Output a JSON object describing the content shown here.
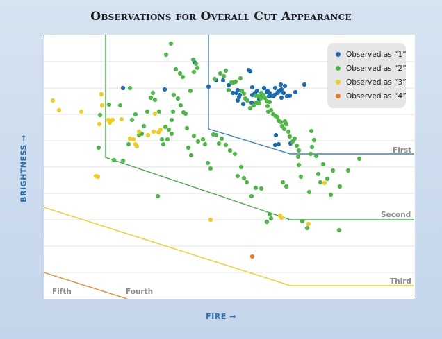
{
  "chart_data": {
    "type": "scatter",
    "title": "Observations for Overall Cut Appearance",
    "xlabel": "FIRE →",
    "ylabel": "BRIGHTNESS →",
    "xlim": [
      0,
      533
    ],
    "ylim": [
      0,
      381
    ],
    "grid": "horizontal",
    "legend_position": "top-right",
    "series": [
      {
        "name": "Observed as “1”",
        "color": "#1b6bb3",
        "points": [
          [
            114,
            304
          ],
          [
            174,
            302
          ],
          [
            217,
            341
          ],
          [
            237,
            306
          ],
          [
            248,
            315
          ],
          [
            258,
            315
          ],
          [
            266,
            308
          ],
          [
            272,
            297
          ],
          [
            277,
            297
          ],
          [
            279,
            301
          ],
          [
            279,
            286
          ],
          [
            281,
            291
          ],
          [
            282,
            294
          ],
          [
            287,
            281
          ],
          [
            295,
            330
          ],
          [
            297,
            328
          ],
          [
            299,
            283
          ],
          [
            300,
            305
          ],
          [
            300,
            294
          ],
          [
            304,
            297
          ],
          [
            307,
            300
          ],
          [
            310,
            288
          ],
          [
            314,
            293
          ],
          [
            317,
            304
          ],
          [
            321,
            298
          ],
          [
            322,
            300
          ],
          [
            324,
            292
          ],
          [
            325,
            297
          ],
          [
            328,
            293
          ],
          [
            330,
            292
          ],
          [
            332,
            294
          ],
          [
            333,
            304
          ],
          [
            336,
            297
          ],
          [
            337,
            298
          ],
          [
            339,
            300
          ],
          [
            341,
            309
          ],
          [
            342,
            302
          ],
          [
            342,
            290
          ],
          [
            345,
            297
          ],
          [
            347,
            307
          ],
          [
            350,
            292
          ],
          [
            354,
            293
          ],
          [
            362,
            298
          ],
          [
            334,
            236
          ],
          [
            338,
            223
          ],
          [
            333,
            222
          ],
          [
            355,
            224
          ],
          [
            375,
            309
          ]
        ]
      },
      {
        "name": "Observed as “2”",
        "color": "#4cb944",
        "points": [
          [
            183,
            368
          ],
          [
            215,
            345
          ],
          [
            219,
            339
          ],
          [
            221,
            333
          ],
          [
            246,
            317
          ],
          [
            254,
            325
          ],
          [
            259,
            321
          ],
          [
            262,
            329
          ],
          [
            266,
            301
          ],
          [
            270,
            312
          ],
          [
            273,
            312
          ],
          [
            276,
            313
          ],
          [
            283,
            318
          ],
          [
            285,
            300
          ],
          [
            288,
            296
          ],
          [
            290,
            289
          ],
          [
            293,
            286
          ],
          [
            297,
            275
          ],
          [
            302,
            279
          ],
          [
            305,
            293
          ],
          [
            306,
            283
          ],
          [
            309,
            292
          ],
          [
            310,
            282
          ],
          [
            312,
            289
          ],
          [
            313,
            297
          ],
          [
            316,
            294
          ],
          [
            318,
            290
          ],
          [
            321,
            285
          ],
          [
            322,
            278
          ],
          [
            323,
            270
          ],
          [
            325,
            284
          ],
          [
            327,
            272
          ],
          [
            330,
            266
          ],
          [
            333,
            264
          ],
          [
            336,
            262
          ],
          [
            338,
            257
          ],
          [
            341,
            255
          ],
          [
            343,
            249
          ],
          [
            346,
            245
          ],
          [
            347,
            256
          ],
          [
            349,
            252
          ],
          [
            352,
            241
          ],
          [
            354,
            234
          ],
          [
            358,
            227
          ],
          [
            361,
            231
          ],
          [
            364,
            221
          ],
          [
            366,
            205
          ],
          [
            367,
            193
          ],
          [
            370,
            176
          ],
          [
            384,
            209
          ],
          [
            386,
            219
          ],
          [
            389,
            229
          ],
          [
            392,
            206
          ],
          [
            395,
            180
          ],
          [
            398,
            168
          ],
          [
            402,
            194
          ],
          [
            408,
            173
          ],
          [
            413,
            150
          ],
          [
            416,
            185
          ],
          [
            426,
            162
          ],
          [
            438,
            185
          ],
          [
            454,
            202
          ],
          [
            425,
            99
          ],
          [
            379,
            102
          ],
          [
            372,
            112
          ],
          [
            349,
            162
          ],
          [
            344,
            168
          ],
          [
            367,
            214
          ],
          [
            382,
            154
          ],
          [
            385,
            242
          ],
          [
            327,
            116
          ],
          [
            325,
            122
          ],
          [
            321,
            111
          ],
          [
            313,
            159
          ],
          [
            305,
            160
          ],
          [
            299,
            148
          ],
          [
            292,
            168
          ],
          [
            288,
            174
          ],
          [
            284,
            190
          ],
          [
            279,
            177
          ],
          [
            275,
            209
          ],
          [
            268,
            214
          ],
          [
            262,
            222
          ],
          [
            256,
            231
          ],
          [
            252,
            224
          ],
          [
            248,
            236
          ],
          [
            244,
            237
          ],
          [
            240,
            188
          ],
          [
            236,
            196
          ],
          [
            232,
            223
          ],
          [
            229,
            230
          ],
          [
            222,
            227
          ],
          [
            216,
            235
          ],
          [
            212,
            207
          ],
          [
            208,
            218
          ],
          [
            206,
            246
          ],
          [
            204,
            267
          ],
          [
            201,
            269
          ],
          [
            197,
            279
          ],
          [
            193,
            289
          ],
          [
            187,
            294
          ],
          [
            186,
            270
          ],
          [
            184,
            258
          ],
          [
            184,
            238
          ],
          [
            180,
            244
          ],
          [
            178,
            230
          ],
          [
            175,
            248
          ],
          [
            172,
            223
          ],
          [
            170,
            230
          ],
          [
            166,
            270
          ],
          [
            160,
            287
          ],
          [
            157,
            297
          ],
          [
            154,
            290
          ],
          [
            149,
            270
          ],
          [
            144,
            249
          ],
          [
            141,
            238
          ],
          [
            137,
            236
          ],
          [
            132,
            266
          ],
          [
            127,
            258
          ],
          [
            124,
            304
          ],
          [
            122,
            223
          ],
          [
            110,
            279
          ],
          [
            101,
            200
          ],
          [
            94,
            280
          ],
          [
            81,
            265
          ],
          [
            79,
            218
          ],
          [
            114,
            199
          ],
          [
            164,
            148
          ],
          [
            216,
            327
          ],
          [
            211,
            300
          ],
          [
            200,
            320
          ],
          [
            196,
            325
          ],
          [
            190,
            331
          ],
          [
            176,
            352
          ]
        ]
      },
      {
        "name": "Observed as “3”",
        "color": "#f2cd1c",
        "points": [
          [
            13,
            286
          ],
          [
            22,
            272
          ],
          [
            54,
            270
          ],
          [
            83,
            295
          ],
          [
            84,
            279
          ],
          [
            80,
            252
          ],
          [
            93,
            258
          ],
          [
            99,
            258
          ],
          [
            95,
            254
          ],
          [
            112,
            259
          ],
          [
            124,
            231
          ],
          [
            129,
            230
          ],
          [
            132,
            223
          ],
          [
            134,
            220
          ],
          [
            137,
            241
          ],
          [
            150,
            236
          ],
          [
            158,
            241
          ],
          [
            165,
            240
          ],
          [
            168,
            244
          ],
          [
            160,
            267
          ],
          [
            75,
            177
          ],
          [
            78,
            176
          ],
          [
            240,
            114
          ],
          [
            340,
            120
          ],
          [
            342,
            117
          ],
          [
            381,
            108
          ],
          [
            404,
            167
          ]
        ]
      },
      {
        "name": "Observed as “4”",
        "color": "#f07d1a",
        "points": [
          [
            300,
            61
          ]
        ]
      }
    ],
    "boundaries": [
      {
        "label": "First",
        "color": "#3d84c6",
        "path": [
          [
            237,
            381
          ],
          [
            237,
            245
          ],
          [
            355,
            209
          ],
          [
            533,
            209
          ]
        ]
      },
      {
        "label": "Second",
        "color": "#45ad45",
        "path": [
          [
            89,
            381
          ],
          [
            89,
            204
          ],
          [
            355,
            114
          ],
          [
            533,
            114
          ]
        ]
      },
      {
        "label": "Third",
        "color": "#f2cd1c",
        "path": [
          [
            0,
            132
          ],
          [
            355,
            19
          ],
          [
            533,
            19
          ]
        ]
      },
      {
        "label": "Fourth",
        "color": "#e58b32",
        "path": [
          [
            0,
            38
          ],
          [
            120,
            0
          ]
        ]
      },
      {
        "label": "Fifth",
        "color": "#888888",
        "path": []
      }
    ]
  }
}
